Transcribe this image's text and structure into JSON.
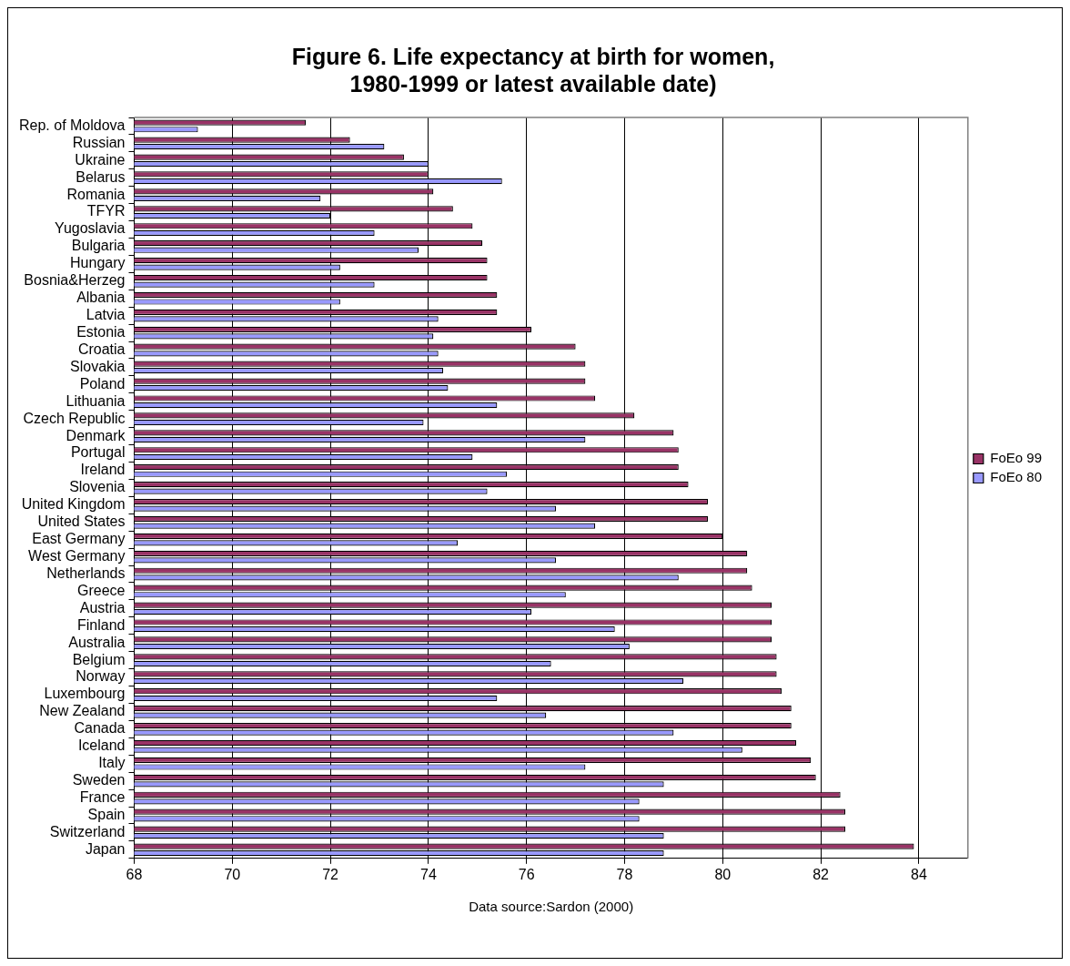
{
  "chart_data": {
    "type": "bar",
    "orientation": "horizontal",
    "title": "Figure 6. Life expectancy at birth for women, 1980-1999 or latest available date)",
    "xlabel": "Data source:Sardon (2000)",
    "categories": [
      "Rep. of Moldova",
      "Russian",
      "Ukraine",
      "Belarus",
      "Romania",
      "TFYR",
      "Yugoslavia",
      "Bulgaria",
      "Hungary",
      "Bosnia&Herzeg",
      "Albania",
      "Latvia",
      "Estonia",
      "Croatia",
      "Slovakia",
      "Poland",
      "Lithuania",
      "Czech Republic",
      "Denmark",
      "Portugal",
      "Ireland",
      "Slovenia",
      "United Kingdom",
      "United States",
      "East Germany",
      "West Germany",
      "Netherlands",
      "Greece",
      "Austria",
      "Finland",
      "Australia",
      "Belgium",
      "Norway",
      "Luxembourg",
      "New Zealand",
      "Canada",
      "Iceland",
      "Italy",
      "Sweden",
      "France",
      "Spain",
      "Switzerland",
      "Japan"
    ],
    "series": [
      {
        "name": "FoEo 99",
        "color": "#993366",
        "values": [
          71.5,
          72.4,
          73.5,
          74.0,
          74.1,
          74.5,
          74.9,
          75.1,
          75.2,
          75.2,
          75.4,
          75.4,
          76.1,
          77.0,
          77.2,
          77.2,
          77.4,
          78.2,
          79.0,
          79.1,
          79.1,
          79.3,
          79.7,
          79.7,
          80.0,
          80.5,
          80.5,
          80.6,
          81.0,
          81.0,
          81.0,
          81.1,
          81.1,
          81.2,
          81.4,
          81.4,
          81.5,
          81.8,
          81.9,
          82.4,
          82.5,
          82.5,
          83.9
        ]
      },
      {
        "name": "FoEo 80",
        "color": "#9999ff",
        "values": [
          69.3,
          73.1,
          74.0,
          75.5,
          71.8,
          72.0,
          72.9,
          73.8,
          72.2,
          72.9,
          72.2,
          74.2,
          74.1,
          74.2,
          74.3,
          74.4,
          75.4,
          73.9,
          77.2,
          74.9,
          75.6,
          75.2,
          76.6,
          77.4,
          74.6,
          76.6,
          79.1,
          76.8,
          76.1,
          77.8,
          78.1,
          76.5,
          79.2,
          75.4,
          76.4,
          79.0,
          80.4,
          77.2,
          78.8,
          78.3,
          78.3,
          78.8,
          78.8
        ]
      }
    ],
    "xlim": [
      68,
      85
    ],
    "xticks": [
      68,
      70,
      72,
      74,
      76,
      78,
      80,
      82,
      84
    ],
    "grid": "x",
    "legend": "right"
  }
}
